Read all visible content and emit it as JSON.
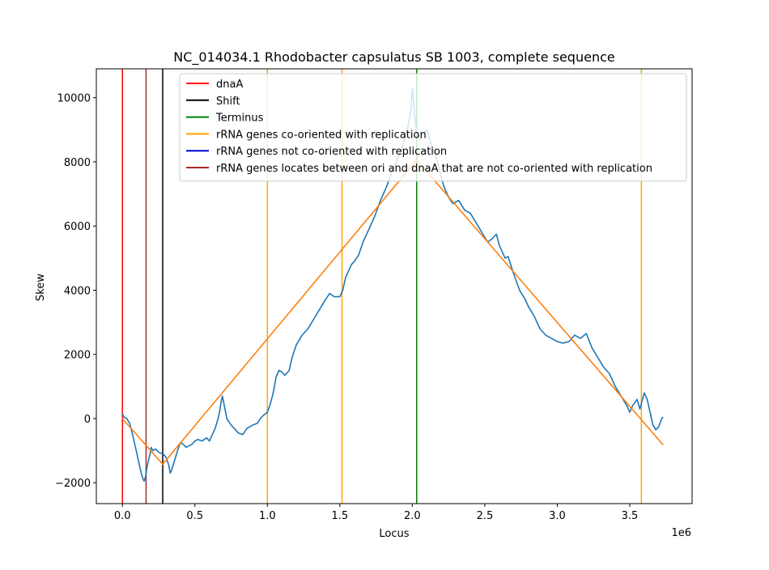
{
  "chart_data": {
    "type": "line",
    "title": "NC_014034.1 Rhodobacter capsulatus SB 1003, complete sequence",
    "xlabel": "Locus",
    "ylabel": "Skew",
    "x_offset_label": "1e6",
    "xlim": [
      -0.18,
      3.93
    ],
    "ylim": [
      -2650,
      10900
    ],
    "x_ticks": [
      0.0,
      0.5,
      1.0,
      1.5,
      2.0,
      2.5,
      3.0,
      3.5
    ],
    "x_tick_labels": [
      "0.0",
      "0.5",
      "1.0",
      "1.5",
      "2.0",
      "2.5",
      "3.0",
      "3.5"
    ],
    "y_ticks": [
      -2000,
      0,
      2000,
      4000,
      6000,
      8000,
      10000
    ],
    "y_tick_labels": [
      "−2000",
      "0",
      "2000",
      "4000",
      "6000",
      "8000",
      "10000"
    ],
    "grid": false,
    "legend_position": "top-right",
    "vlines": [
      {
        "x": 0.0,
        "color": "#ff0000",
        "legend": "dnaA"
      },
      {
        "x": 0.163,
        "color": "#a52a2a",
        "legend": "rRNA genes locates between ori and dnaA that are not co-oriented with replication"
      },
      {
        "x": 0.278,
        "color": "#000000",
        "legend": "Shift"
      },
      {
        "x": 1.0,
        "color": "#ffa500",
        "legend": "rRNA genes co-oriented with replication"
      },
      {
        "x": 1.515,
        "color": "#ffa500",
        "legend": "rRNA genes co-oriented with replication"
      },
      {
        "x": 2.03,
        "color": "#008000",
        "legend": "Terminus"
      },
      {
        "x": 3.58,
        "color": "#ffa500",
        "legend": "rRNA genes co-oriented with replication"
      }
    ],
    "legend": [
      {
        "label": "dnaA",
        "color": "#ff0000"
      },
      {
        "label": "Shift",
        "color": "#000000"
      },
      {
        "label": "Terminus",
        "color": "#008000"
      },
      {
        "label": "rRNA genes co-oriented with replication",
        "color": "#ffa500"
      },
      {
        "label": "rRNA genes not co-oriented with replication",
        "color": "#0000cd"
      },
      {
        "label": "rRNA genes locates between ori and dnaA that are not co-oriented with replication",
        "color": "#a52a2a"
      }
    ],
    "series": [
      {
        "color": "#1f77b4",
        "x": [
          0.0,
          0.01,
          0.03,
          0.05,
          0.07,
          0.09,
          0.11,
          0.12,
          0.13,
          0.14,
          0.15,
          0.16,
          0.17,
          0.18,
          0.19,
          0.2,
          0.21,
          0.23,
          0.25,
          0.28,
          0.3,
          0.32,
          0.33,
          0.34,
          0.36,
          0.38,
          0.4,
          0.42,
          0.44,
          0.46,
          0.48,
          0.5,
          0.52,
          0.55,
          0.58,
          0.6,
          0.62,
          0.64,
          0.66,
          0.67,
          0.68,
          0.69,
          0.72,
          0.75,
          0.78,
          0.8,
          0.83,
          0.86,
          0.9,
          0.93,
          0.96,
          1.0,
          1.02,
          1.04,
          1.06,
          1.08,
          1.1,
          1.12,
          1.15,
          1.17,
          1.2,
          1.24,
          1.28,
          1.32,
          1.36,
          1.4,
          1.43,
          1.46,
          1.5,
          1.52,
          1.54,
          1.56,
          1.58,
          1.6,
          1.63,
          1.66,
          1.7,
          1.74,
          1.78,
          1.82,
          1.86,
          1.9,
          1.94,
          1.97,
          1.99,
          2.0,
          2.01,
          2.02,
          2.03,
          2.05,
          2.08,
          2.1,
          2.12,
          2.14,
          2.16,
          2.18,
          2.2,
          2.22,
          2.25,
          2.28,
          2.32,
          2.36,
          2.4,
          2.44,
          2.48,
          2.52,
          2.55,
          2.58,
          2.6,
          2.62,
          2.64,
          2.66,
          2.7,
          2.74,
          2.78,
          2.8,
          2.84,
          2.88,
          2.92,
          2.96,
          3.0,
          3.04,
          3.08,
          3.12,
          3.16,
          3.2,
          3.24,
          3.28,
          3.32,
          3.36,
          3.4,
          3.44,
          3.48,
          3.5,
          3.52,
          3.55,
          3.57,
          3.6,
          3.62,
          3.64,
          3.66,
          3.68,
          3.7,
          3.72,
          3.73
        ],
        "y": [
          150,
          50,
          0,
          -150,
          -500,
          -900,
          -1300,
          -1500,
          -1700,
          -1850,
          -1950,
          -1800,
          -1500,
          -1300,
          -1100,
          -900,
          -1000,
          -950,
          -1050,
          -1100,
          -1200,
          -1450,
          -1700,
          -1600,
          -1300,
          -1000,
          -750,
          -800,
          -900,
          -850,
          -800,
          -700,
          -650,
          -700,
          -600,
          -700,
          -500,
          -300,
          0,
          200,
          500,
          700,
          0,
          -200,
          -350,
          -450,
          -500,
          -300,
          -200,
          -150,
          50,
          200,
          450,
          800,
          1300,
          1500,
          1450,
          1350,
          1500,
          1900,
          2300,
          2600,
          2800,
          3100,
          3400,
          3700,
          3900,
          3800,
          3800,
          4000,
          4400,
          4600,
          4800,
          4900,
          5100,
          5500,
          5900,
          6300,
          6800,
          7200,
          7700,
          8100,
          8600,
          9100,
          9600,
          10300,
          9800,
          9300,
          8900,
          8700,
          8900,
          9000,
          8700,
          8400,
          8200,
          7900,
          7500,
          7200,
          6900,
          6700,
          6800,
          6500,
          6400,
          6100,
          5800,
          5500,
          5600,
          5750,
          5400,
          5200,
          5000,
          5050,
          4500,
          4000,
          3700,
          3500,
          3200,
          2800,
          2600,
          2500,
          2400,
          2350,
          2400,
          2600,
          2500,
          2650,
          2200,
          1900,
          1600,
          1400,
          1000,
          700,
          400,
          200,
          400,
          600,
          300,
          800,
          600,
          200,
          -200,
          -350,
          -250,
          0,
          50
        ]
      },
      {
        "color": "#ff7f0e",
        "x": [
          0.0,
          0.278,
          2.03,
          3.73
        ],
        "y": [
          0,
          -1420,
          8060,
          -820
        ]
      }
    ]
  }
}
